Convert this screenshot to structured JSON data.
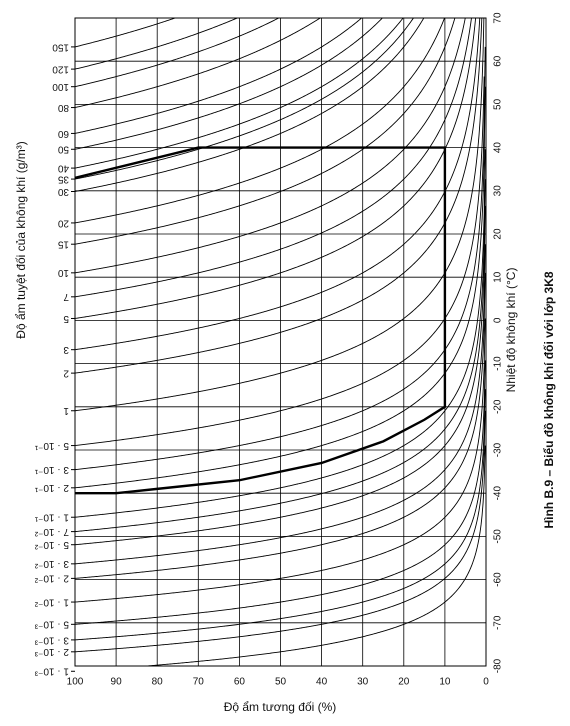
{
  "chart_data": {
    "type": "climatogram",
    "title": "Hình B.9 – Biểu đồ không khí đối với lớp 3K8",
    "x_label": "Độ ẩm tương đối (%)",
    "y_label": "Độ ẩm tuyệt đối của không khí (g/m³)",
    "y2_label": "Nhiệt độ không khí (°C)",
    "xlim": [
      100,
      0
    ],
    "xticks": [
      100,
      90,
      80,
      70,
      60,
      50,
      40,
      30,
      20,
      10,
      0
    ],
    "ylim": [
      -80,
      70
    ],
    "yticks": [
      70,
      60,
      50,
      40,
      30,
      20,
      10,
      0,
      -10,
      -20,
      -30,
      -40,
      -50,
      -60,
      -70,
      -80
    ],
    "humidity_ticks": [
      150,
      120,
      100,
      80,
      60,
      50,
      40,
      35,
      30,
      20,
      15,
      10,
      7,
      5,
      3,
      2,
      1,
      {
        "value": 0.5,
        "label": "5 · 10⁻¹"
      },
      {
        "value": 0.3,
        "label": "3 · 10⁻¹"
      },
      {
        "value": 0.2,
        "label": "2 · 10⁻¹"
      },
      {
        "value": 0.1,
        "label": "1 · 10⁻¹"
      },
      {
        "value": 0.07,
        "label": "7 · 10⁻²"
      },
      {
        "value": 0.05,
        "label": "5 · 10⁻²"
      },
      {
        "value": 0.03,
        "label": "3 · 10⁻²"
      },
      {
        "value": 0.02,
        "label": "2 · 10⁻²"
      },
      {
        "value": 0.01,
        "label": "1 · 10⁻²"
      },
      {
        "value": 0.005,
        "label": "5 · 10⁻³"
      },
      {
        "value": 0.003,
        "label": "3 · 10⁻³"
      },
      {
        "value": 0.002,
        "label": "2 · 10⁻³"
      },
      {
        "value": 0.001,
        "label": "1 · 10⁻³"
      }
    ],
    "boundary": {
      "color": "#000000",
      "rh": [
        100,
        90,
        80,
        60,
        40,
        25,
        15,
        10,
        10,
        70,
        100
      ],
      "temp": [
        -40,
        -40,
        -39,
        -37,
        -33,
        -28,
        -23,
        -20,
        40,
        40,
        33
      ]
    },
    "grid": true
  }
}
